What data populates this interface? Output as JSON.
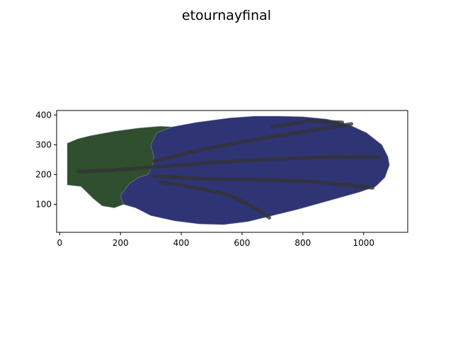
{
  "chart_data": {
    "type": "scatter",
    "title": "etournayfinal",
    "xlabel": "",
    "ylabel": "",
    "xlim": [
      -10,
      1145
    ],
    "ylim": [
      6,
      415
    ],
    "x_ticks": [
      0,
      200,
      400,
      600,
      800,
      1000
    ],
    "y_ticks": [
      100,
      200,
      300,
      400
    ],
    "grid": false,
    "legend": "none",
    "series": [
      {
        "color": "#2f4f2f",
        "outline": [
          [
            25,
            305
          ],
          [
            60,
            320
          ],
          [
            100,
            330
          ],
          [
            180,
            345
          ],
          [
            260,
            356
          ],
          [
            330,
            362
          ],
          [
            370,
            360
          ],
          [
            320,
            340
          ],
          [
            300,
            300
          ],
          [
            310,
            260
          ],
          [
            305,
            225
          ],
          [
            290,
            200
          ],
          [
            260,
            190
          ],
          [
            230,
            170
          ],
          [
            200,
            130
          ],
          [
            210,
            100
          ],
          [
            180,
            88
          ],
          [
            140,
            95
          ],
          [
            110,
            120
          ],
          [
            70,
            160
          ],
          [
            25,
            165
          ]
        ]
      },
      {
        "color": "#2e3474",
        "outline": [
          [
            370,
            360
          ],
          [
            450,
            375
          ],
          [
            560,
            390
          ],
          [
            640,
            396
          ],
          [
            720,
            396
          ],
          [
            800,
            394
          ],
          [
            880,
            386
          ],
          [
            950,
            368
          ],
          [
            1010,
            340
          ],
          [
            1060,
            300
          ],
          [
            1080,
            260
          ],
          [
            1085,
            232
          ],
          [
            1070,
            190
          ],
          [
            1040,
            160
          ],
          [
            990,
            142
          ],
          [
            920,
            122
          ],
          [
            850,
            102
          ],
          [
            780,
            82
          ],
          [
            700,
            62
          ],
          [
            620,
            42
          ],
          [
            540,
            32
          ],
          [
            460,
            34
          ],
          [
            380,
            44
          ],
          [
            300,
            62
          ],
          [
            250,
            88
          ],
          [
            210,
            100
          ],
          [
            200,
            130
          ],
          [
            230,
            170
          ],
          [
            260,
            190
          ],
          [
            290,
            200
          ],
          [
            305,
            225
          ],
          [
            310,
            260
          ],
          [
            300,
            300
          ],
          [
            320,
            340
          ]
        ]
      }
    ],
    "veins": {
      "color": "#333333",
      "paths": [
        [
          [
            60,
            210
          ],
          [
            180,
            215
          ],
          [
            310,
            225
          ]
        ],
        [
          [
            310,
            225
          ],
          [
            500,
            240
          ],
          [
            700,
            252
          ],
          [
            900,
            258
          ],
          [
            1050,
            260
          ]
        ],
        [
          [
            310,
            195
          ],
          [
            500,
            185
          ],
          [
            700,
            182
          ],
          [
            850,
            175
          ],
          [
            1030,
            155
          ]
        ],
        [
          [
            330,
            175
          ],
          [
            450,
            155
          ],
          [
            560,
            130
          ],
          [
            640,
            90
          ],
          [
            690,
            55
          ]
        ],
        [
          [
            310,
            245
          ],
          [
            450,
            280
          ],
          [
            600,
            310
          ],
          [
            780,
            340
          ],
          [
            960,
            370
          ]
        ],
        [
          [
            700,
            360
          ],
          [
            820,
            380
          ],
          [
            930,
            375
          ]
        ]
      ]
    }
  }
}
